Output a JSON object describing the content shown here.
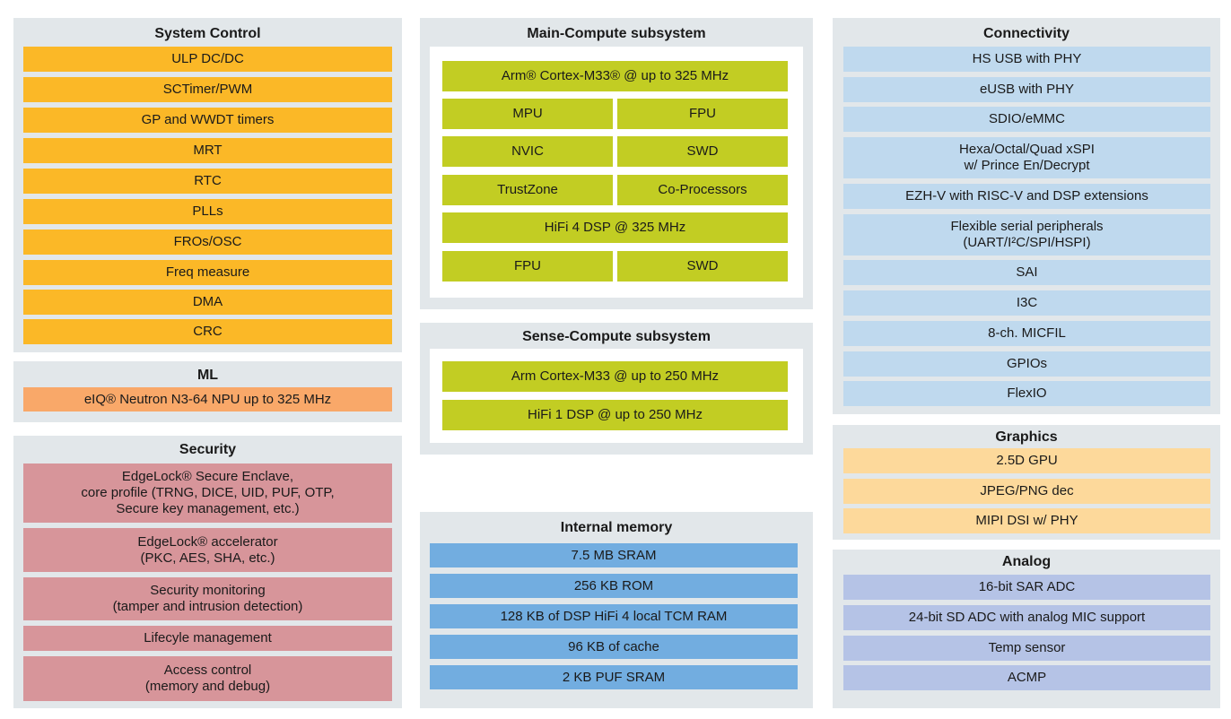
{
  "system_control": {
    "title": "System Control",
    "items": [
      "ULP DC/DC",
      "SCTimer/PWM",
      "GP and WWDT timers",
      "MRT",
      "RTC",
      "PLLs",
      "FROs/OSC",
      "Freq measure",
      "DMA",
      "CRC"
    ]
  },
  "ml": {
    "title": "ML",
    "items": [
      "eIQ® Neutron N3-64 NPU up to 325 MHz"
    ]
  },
  "security": {
    "title": "Security",
    "items": [
      "EdgeLock® Secure Enclave,\ncore profile (TRNG, DICE, UID, PUF, OTP,\nSecure key management, etc.)",
      "EdgeLock® accelerator\n(PKC, AES, SHA, etc.)",
      "Security monitoring\n(tamper and intrusion detection)",
      "Lifecyle management",
      "Access control\n(memory and debug)"
    ]
  },
  "main_compute": {
    "title": "Main-Compute subsystem",
    "core": "Arm® Cortex-M33® @ up to 325 MHz",
    "mpu": "MPU",
    "fpu": "FPU",
    "nvic": "NVIC",
    "swd": "SWD",
    "trustzone": "TrustZone",
    "coprocessors": "Co-Processors",
    "dsp": "HiFi 4 DSP @ 325 MHz",
    "dsp_fpu": "FPU",
    "dsp_swd": "SWD"
  },
  "sense_compute": {
    "title": "Sense-Compute subsystem",
    "core": "Arm Cortex-M33 @ up to 250 MHz",
    "dsp": "HiFi 1 DSP @ up to 250 MHz"
  },
  "internal_memory": {
    "title": "Internal memory",
    "items": [
      "7.5 MB SRAM",
      "256 KB ROM",
      "128 KB of DSP HiFi 4 local TCM RAM",
      "96 KB of cache",
      "2 KB PUF SRAM"
    ]
  },
  "connectivity": {
    "title": "Connectivity",
    "items": [
      "HS USB with PHY",
      "eUSB with PHY",
      "SDIO/eMMC",
      "Hexa/Octal/Quad xSPI\nw/ Prince En/Decrypt",
      "EZH-V with RISC-V and DSP extensions",
      "Flexible serial peripherals\n(UART/I²C/SPI/HSPI)",
      "SAI",
      "I3C",
      "8-ch. MICFIL",
      "GPIOs",
      "FlexIO"
    ]
  },
  "graphics": {
    "title": "Graphics",
    "items": [
      "2.5D GPU",
      "JPEG/PNG dec",
      "MIPI DSI w/ PHY"
    ]
  },
  "analog": {
    "title": "Analog",
    "items": [
      "16-bit SAR ADC",
      "24-bit SD ADC with analog MIC support",
      "Temp sensor",
      "ACMP"
    ]
  },
  "colors": {
    "panel_bg": "#e2e7ea",
    "system_control": "#fbb827",
    "ml": "#f9a869",
    "security": "#d7959a",
    "compute": "#c2cd23",
    "connectivity": "#bfd9ee",
    "memory": "#72ade0",
    "graphics": "#fdd99b",
    "analog": "#b5c3e6"
  }
}
